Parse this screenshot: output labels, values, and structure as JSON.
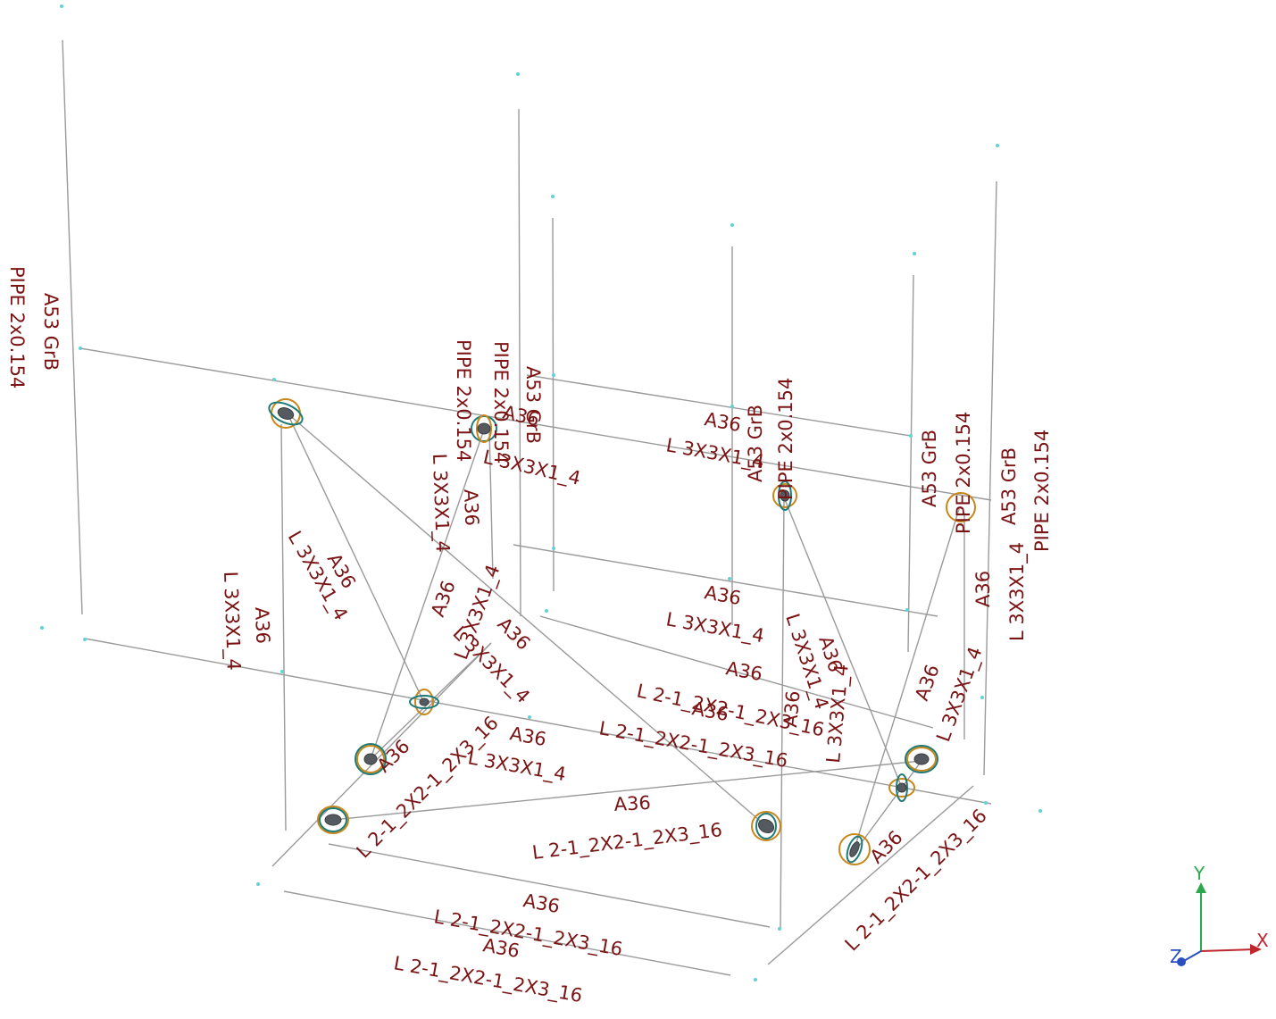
{
  "labels": {
    "a36": "A36",
    "a53": "A53 GrB",
    "pipe": "PIPE 2x0.154",
    "angle_3x3": "L 3X3X1_4",
    "angle_2x2": "L 2-1_2X2-1_2X3_16"
  },
  "triad": {
    "x": "X",
    "y": "Y",
    "z": "Z"
  },
  "colors": {
    "background": "#ffffff",
    "member_line": "#9a9a9a",
    "label_text": "#7a1414",
    "node": "#5fd3d8",
    "release_ring_orange": "#c9861a",
    "release_ring_teal": "#1f7b78",
    "axis_x": "#c0262e",
    "axis_y": "#2aa84a",
    "axis_z": "#2a4fc0"
  }
}
